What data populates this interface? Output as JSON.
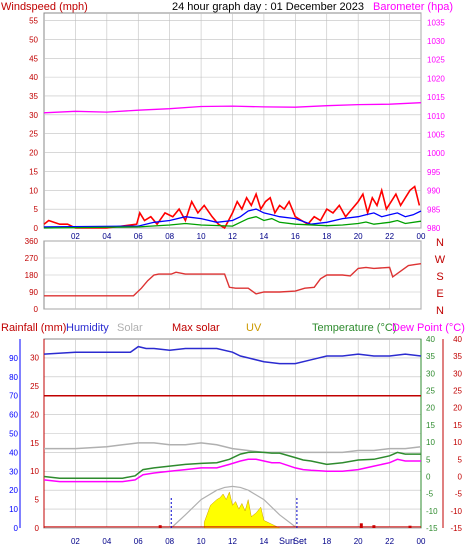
{
  "title": "24 hour graph day : 01 December 2023",
  "legend": {
    "windspeed": "Windspeed (mph)",
    "barometer": "Barometer (hpa)",
    "rainfall": "Rainfall (mm)",
    "humidity": "Humidity",
    "solar": "Solar",
    "max_solar": "Max solar",
    "uv": "UV",
    "temperature": "Temperature (°C)",
    "dew_point": "Dew Point (°C)"
  },
  "x_ticks": [
    "02",
    "04",
    "06",
    "08",
    "10",
    "12",
    "14",
    "16",
    "18",
    "20",
    "22",
    "00"
  ],
  "sun_labels": {
    "sunrise": "Sun",
    "sunset": "Set"
  },
  "colors": {
    "wind_label": "#c00000",
    "barometer": "#ff00ff",
    "gust": "#ff0000",
    "avg_wind": "#0000ff",
    "wind_green": "#00a000",
    "direction": "#dd3333",
    "rain_axis": "#0000ff",
    "humidity": "#2b2bd0",
    "solar": "#b0b0b0",
    "max_solar": "#c00000",
    "uv": "#cc9900",
    "temperature": "#2e8b2e",
    "dew_point": "#ff00ff",
    "solar_fill": "#ffff00",
    "grid": "#c0c0c0",
    "axis_tick_x": "#000088"
  },
  "chart_data": [
    {
      "type": "line",
      "panel": "wind-barometer",
      "x_range": [
        0,
        24
      ],
      "left_axis": {
        "label": "Windspeed (mph)",
        "ylim": [
          0,
          57
        ],
        "ticks": [
          0,
          5,
          10,
          15,
          20,
          25,
          30,
          35,
          40,
          45,
          50,
          55
        ]
      },
      "right_axis": {
        "label": "Barometer (hpa)",
        "ylim": [
          980,
          1037.5
        ],
        "ticks": [
          980,
          985,
          990,
          995,
          1000,
          1005,
          1010,
          1015,
          1020,
          1025,
          1030,
          1035
        ]
      },
      "series": [
        {
          "name": "Barometer (hpa)",
          "axis": "right",
          "x": [
            0,
            2,
            4,
            6,
            8,
            10,
            12,
            14,
            16,
            18,
            20,
            22,
            24
          ],
          "values": [
            1010.8,
            1011.2,
            1011.0,
            1011.5,
            1011.9,
            1012.5,
            1012.6,
            1012.4,
            1012.3,
            1012.7,
            1013.0,
            1013.1,
            1013.5
          ]
        },
        {
          "name": "Windspeed (mph)",
          "axis": "left",
          "x": [
            0,
            0.3,
            1.0,
            1.5,
            2,
            4,
            5.9,
            6.1,
            6.4,
            6.8,
            7.2,
            7.7,
            8.2,
            8.6,
            9.0,
            9.4,
            9.8,
            10.2,
            10.7,
            11.1,
            11.5,
            12.0,
            12.3,
            12.6,
            12.9,
            13.2,
            13.5,
            13.8,
            14.1,
            14.4,
            14.7,
            15.0,
            15.3,
            15.6,
            16.0,
            16.4,
            16.8,
            17.2,
            17.6,
            18.0,
            18.4,
            18.8,
            19.2,
            19.6,
            20.0,
            20.3,
            20.6,
            20.9,
            21.2,
            21.5,
            21.8,
            22.1,
            22.4,
            22.7,
            23.0,
            23.3,
            23.6,
            23.9
          ],
          "values": [
            1,
            2,
            1,
            1,
            0,
            0,
            1,
            4,
            2,
            3,
            1,
            4,
            3,
            5,
            2,
            7,
            4,
            6,
            3,
            1,
            0,
            4,
            7,
            5,
            8,
            6,
            9,
            5,
            7,
            8,
            4,
            6,
            5,
            7,
            3,
            2,
            1,
            3,
            2,
            5,
            4,
            6,
            3,
            5,
            7,
            9,
            4,
            8,
            6,
            10,
            5,
            7,
            9,
            6,
            8,
            10,
            11,
            6
          ]
        },
        {
          "name": "Average wind",
          "axis": "left",
          "x": [
            0,
            6,
            7,
            8,
            9,
            10,
            11,
            12,
            12.5,
            13,
            13.5,
            14,
            14.5,
            15,
            16,
            17,
            18,
            19,
            20,
            20.5,
            21,
            21.5,
            22,
            22.5,
            23,
            23.5,
            24
          ],
          "values": [
            0.3,
            0.5,
            1.5,
            2,
            3,
            2.5,
            1.5,
            2,
            3,
            4.5,
            5,
            4,
            3.5,
            3,
            2.5,
            1,
            1.5,
            2.5,
            3,
            3.5,
            4,
            3,
            3.5,
            4,
            3,
            3.5,
            4.5
          ]
        },
        {
          "name": "Green wind",
          "axis": "left",
          "x": [
            0,
            6,
            8,
            9,
            10,
            12,
            12.5,
            13,
            13.5,
            14,
            14.5,
            15,
            16,
            18,
            19,
            20,
            20.5,
            21,
            22,
            22.5,
            23,
            24
          ],
          "values": [
            0,
            0.3,
            0.8,
            1.2,
            0.8,
            0.5,
            1.5,
            2.5,
            3,
            2,
            2.5,
            1.5,
            1,
            0.6,
            0.8,
            1.2,
            1.6,
            1,
            1.5,
            2,
            1.2,
            1.8
          ]
        }
      ]
    },
    {
      "type": "line",
      "panel": "wind-direction",
      "x_range": [
        0,
        24
      ],
      "ylim": [
        0,
        360
      ],
      "y_ticks": [
        0,
        90,
        180,
        270,
        360
      ],
      "compass_labels": [
        "N",
        "W",
        "S",
        "E",
        "N"
      ],
      "series": [
        {
          "name": "Wind direction",
          "x": [
            0,
            5.7,
            6.2,
            6.6,
            7.0,
            7.3,
            8.1,
            8.4,
            9.0,
            10.0,
            11.5,
            11.8,
            12.2,
            13.0,
            13.5,
            14.0,
            15.0,
            16.0,
            16.6,
            17.2,
            17.6,
            18.0,
            19.0,
            19.5,
            20.0,
            20.5,
            21.0,
            22.0,
            22.2,
            23.2,
            23.6,
            24
          ],
          "values": [
            70,
            70,
            110,
            150,
            180,
            185,
            185,
            195,
            185,
            185,
            185,
            115,
            110,
            110,
            80,
            90,
            90,
            95,
            110,
            115,
            160,
            180,
            180,
            175,
            215,
            220,
            215,
            220,
            170,
            230,
            235,
            240
          ]
        }
      ]
    },
    {
      "type": "line",
      "panel": "rain-humidity-temperature",
      "x_range": [
        0,
        24
      ],
      "axes": {
        "rainfall": {
          "label": "Rainfall (mm)",
          "ylim": [
            0,
            100
          ],
          "ticks": [
            0,
            10,
            20,
            30,
            40,
            50,
            60,
            70,
            80,
            90
          ]
        },
        "humidity": {
          "label": "Humidity",
          "ylim": [
            0,
            33.3
          ],
          "ticks": [
            0,
            5,
            10,
            15,
            20,
            25,
            30
          ]
        },
        "temperature": {
          "label": "Temperature (°C)",
          "ylim": [
            -15,
            40
          ],
          "ticks": [
            -15,
            -10,
            -5,
            0,
            5,
            10,
            15,
            20,
            25,
            30,
            35,
            40
          ]
        },
        "dew_point": {
          "label": "Dew Point (°C)",
          "ylim": [
            -15,
            40
          ],
          "ticks": [
            -15,
            -10,
            -5,
            0,
            5,
            10,
            15,
            20,
            25,
            30,
            35,
            40
          ]
        }
      },
      "series": [
        {
          "name": "Humidity",
          "axis": "rainfall",
          "x": [
            0,
            2,
            4,
            5.5,
            6,
            6.5,
            7,
            8,
            9,
            10,
            11,
            12,
            12.5,
            13,
            14,
            15,
            16,
            17,
            18,
            19,
            20,
            21,
            22,
            23,
            24
          ],
          "values": [
            92,
            93,
            93,
            93,
            96,
            95,
            95,
            94,
            95,
            95,
            95,
            93,
            91,
            90,
            88,
            87,
            87,
            89,
            91,
            91,
            92,
            91,
            91,
            92,
            91
          ]
        },
        {
          "name": "Max solar",
          "axis": "rainfall",
          "x": [
            0,
            24
          ],
          "values": [
            70,
            70
          ]
        },
        {
          "name": "Solar",
          "axis": "rainfall",
          "x": [
            0,
            2,
            4,
            5,
            6,
            7,
            8,
            9,
            10,
            11,
            12,
            13,
            14,
            15,
            16,
            17,
            18,
            19,
            20,
            21,
            22,
            23,
            24
          ],
          "values": [
            42,
            42,
            43,
            44,
            45,
            45,
            44,
            44,
            45,
            44,
            42,
            41,
            40,
            40,
            40,
            40,
            40,
            40,
            41,
            41,
            42,
            42,
            43
          ]
        },
        {
          "name": "Temperature (°C)",
          "axis": "temperature",
          "x": [
            0,
            1,
            2,
            3,
            4,
            5,
            5.8,
            6.3,
            7,
            8,
            9,
            10,
            11,
            11.8,
            12.5,
            13,
            13.5,
            14,
            14.5,
            15,
            16,
            16.5,
            17,
            18,
            19,
            20,
            21,
            22,
            22.5,
            23,
            24
          ],
          "values": [
            0,
            -0.5,
            -0.5,
            -0.5,
            -0.5,
            -0.5,
            0.2,
            2,
            2.5,
            3,
            3.5,
            3.8,
            4,
            5,
            6.5,
            7,
            7.1,
            7,
            6.8,
            6.8,
            5.5,
            4.8,
            4.5,
            3.5,
            4,
            4.8,
            5,
            6,
            7,
            6.5,
            6.5
          ]
        },
        {
          "name": "Dew Point (°C)",
          "axis": "temperature",
          "x": [
            0,
            1,
            2,
            3,
            4,
            5,
            5.8,
            6.3,
            7,
            8,
            9,
            10,
            11,
            11.8,
            12.5,
            13,
            13.5,
            14,
            14.5,
            15,
            16,
            16.5,
            17,
            18,
            19,
            20,
            21,
            22,
            22.5,
            23,
            24
          ],
          "values": [
            -1,
            -1.5,
            -1.5,
            -1.5,
            -1.5,
            -1.5,
            -1,
            0.5,
            1,
            1.5,
            2,
            2.5,
            2.5,
            3.5,
            4.5,
            5,
            5,
            4.5,
            4,
            4,
            2.5,
            2,
            1.8,
            1.5,
            1.5,
            2,
            3,
            4,
            5,
            4.5,
            4.5
          ]
        },
        {
          "name": "Max solar curve",
          "axis": "rainfall",
          "x": [
            8.1,
            9,
            10,
            11,
            11.5,
            12,
            12.5,
            13,
            14,
            15,
            16.1
          ],
          "values": [
            0,
            7,
            15,
            20,
            21.5,
            22,
            21.5,
            20,
            15,
            7,
            0
          ]
        },
        {
          "name": "Solar fill",
          "axis": "rainfall",
          "x": [
            10.2,
            10.6,
            11,
            11.2,
            11.4,
            11.6,
            11.8,
            12,
            12.2,
            12.4,
            12.6,
            12.8,
            13,
            13.2,
            13.5,
            13.8,
            14,
            14.5,
            15
          ],
          "values": [
            3,
            12,
            15,
            16,
            18,
            15,
            19,
            12,
            14,
            10,
            13,
            9,
            15,
            6,
            8,
            11,
            4,
            2,
            0
          ]
        },
        {
          "name": "Rainfall (mm)",
          "axis": "rainfall",
          "x": [
            7.4,
            20.2,
            21.0,
            23.3
          ],
          "values": [
            1.5,
            2.5,
            1.5,
            1.2
          ]
        }
      ],
      "sun_markers": {
        "sunrise_hour": 8.1,
        "sunset_hour": 16.1
      }
    }
  ]
}
